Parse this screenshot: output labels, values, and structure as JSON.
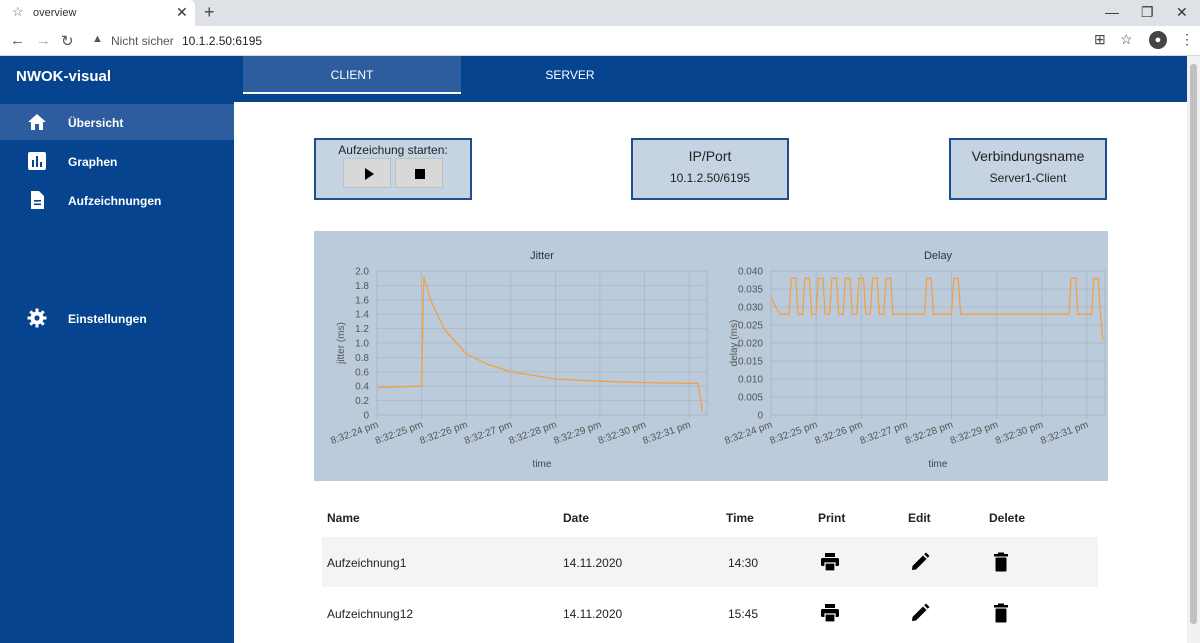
{
  "browser": {
    "tab_title": "overview",
    "security": "Nicht sicher",
    "url": "10.1.2.50:6195"
  },
  "app": {
    "brand": "NWOK-visual",
    "tabs": [
      {
        "label": "CLIENT"
      },
      {
        "label": "SERVER"
      }
    ]
  },
  "sidebar": {
    "items": [
      {
        "label": "Übersicht",
        "icon": "home-icon"
      },
      {
        "label": "Graphen",
        "icon": "bar-chart-icon"
      },
      {
        "label": "Aufzeichnungen",
        "icon": "document-icon"
      },
      {
        "label": "Einstellungen",
        "icon": "gear-icon"
      }
    ]
  },
  "recording": {
    "label": "Aufzeichung starten:"
  },
  "ipport": {
    "title": "IP/Port",
    "value": "10.1.2.50/6195"
  },
  "connection": {
    "title": "Verbindungsname",
    "value": "Server1-Client"
  },
  "chart_data": [
    {
      "type": "line",
      "title": "Jitter",
      "xlabel": "time",
      "ylabel": "jitter (ms)",
      "ylim": [
        0,
        2.0
      ],
      "yticks": [
        "0",
        "0.2",
        "0.4",
        "0.6",
        "0.8",
        "1.0",
        "1.2",
        "1.4",
        "1.6",
        "1.8",
        "2.0"
      ],
      "xticks": [
        "8:32:24 pm",
        "8:32:25 pm",
        "8:32:26 pm",
        "8:32:27 pm",
        "8:32:28 pm",
        "8:32:29 pm",
        "8:32:30 pm",
        "8:32:31 pm"
      ],
      "x": [
        0,
        0.95,
        1.0,
        1.05,
        1.2,
        1.5,
        2.0,
        2.5,
        3.0,
        3.5,
        4.0,
        5.0,
        6.0,
        7.0,
        7.2,
        7.3
      ],
      "y": [
        0.38,
        0.4,
        0.4,
        1.92,
        1.6,
        1.2,
        0.85,
        0.7,
        0.6,
        0.55,
        0.5,
        0.47,
        0.45,
        0.44,
        0.44,
        0.05
      ],
      "color": "#f4a040"
    },
    {
      "type": "line",
      "title": "Delay",
      "xlabel": "time",
      "ylabel": "delay (ms)",
      "ylim": [
        0,
        0.04
      ],
      "yticks": [
        "0",
        "0.005",
        "0.010",
        "0.015",
        "0.020",
        "0.025",
        "0.030",
        "0.035",
        "0.040"
      ],
      "xticks": [
        "8:32:24 pm",
        "8:32:25 pm",
        "8:32:26 pm",
        "8:32:27 pm",
        "8:32:28 pm",
        "8:32:29 pm",
        "8:32:30 pm",
        "8:32:31 pm"
      ],
      "x": [
        0,
        0.1,
        0.2,
        0.3,
        0.4,
        0.45,
        0.55,
        0.6,
        0.7,
        0.75,
        0.85,
        0.9,
        1.0,
        1.05,
        1.15,
        1.2,
        1.3,
        1.35,
        1.45,
        1.5,
        1.6,
        1.65,
        1.75,
        1.8,
        1.9,
        1.95,
        2.05,
        2.1,
        2.2,
        2.25,
        2.35,
        2.4,
        2.5,
        2.55,
        2.65,
        2.7,
        3.4,
        3.45,
        3.55,
        3.6,
        3.7,
        4.0,
        4.05,
        4.15,
        4.2,
        4.3,
        6.6,
        6.65,
        6.75,
        6.8,
        7.1,
        7.15,
        7.25,
        7.3,
        7.35
      ],
      "y": [
        0.033,
        0.03,
        0.028,
        0.028,
        0.028,
        0.038,
        0.038,
        0.028,
        0.028,
        0.038,
        0.038,
        0.028,
        0.028,
        0.038,
        0.038,
        0.028,
        0.028,
        0.038,
        0.038,
        0.028,
        0.028,
        0.038,
        0.038,
        0.028,
        0.028,
        0.038,
        0.038,
        0.028,
        0.028,
        0.038,
        0.038,
        0.028,
        0.028,
        0.038,
        0.038,
        0.028,
        0.028,
        0.038,
        0.038,
        0.028,
        0.028,
        0.028,
        0.038,
        0.038,
        0.028,
        0.028,
        0.028,
        0.038,
        0.038,
        0.028,
        0.028,
        0.038,
        0.038,
        0.028,
        0.021
      ],
      "color": "#f4a040"
    }
  ],
  "table": {
    "headers": [
      "Name",
      "Date",
      "Time",
      "Print",
      "Edit",
      "Delete"
    ],
    "rows": [
      {
        "name": "Aufzeichnung1",
        "date": "14.11.2020",
        "time": "14:30"
      },
      {
        "name": "Aufzeichnung12",
        "date": "14.11.2020",
        "time": "15:45"
      }
    ]
  }
}
